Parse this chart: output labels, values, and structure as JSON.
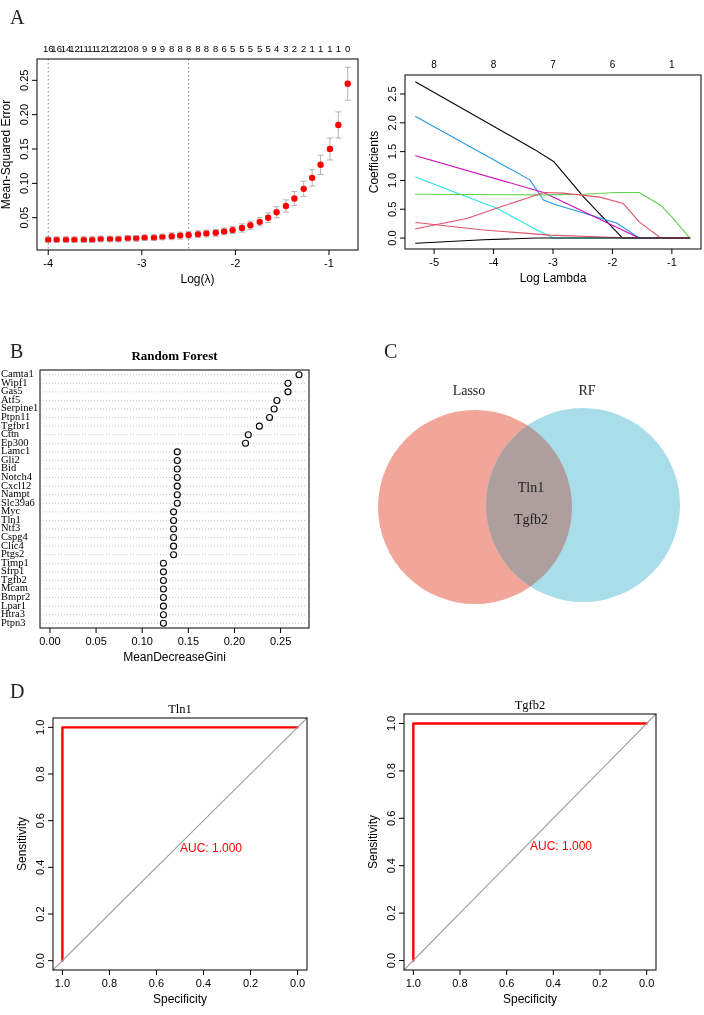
{
  "chart_data": [
    {
      "type": "scatter",
      "xlabel": "Log(λ)",
      "ylabel": "Mean-Squared Error",
      "annotations": [
        "A",
        "16",
        "16",
        "14",
        "12",
        "11",
        "11",
        "12",
        "12",
        "12",
        "10",
        "8",
        "9",
        "9",
        "9",
        "8",
        "8",
        "8",
        "8",
        "8",
        "8",
        "6",
        "5",
        "5",
        "5",
        "5",
        "5",
        "4",
        "3",
        "2",
        "2",
        "1",
        "1",
        "1",
        "1",
        "0"
      ],
      "color": "#ff0000",
      "marker": "circle",
      "x": [
        -4.0,
        -3.91,
        -3.81,
        -3.72,
        -3.62,
        -3.53,
        -3.44,
        -3.34,
        -3.25,
        -3.15,
        -3.06,
        -2.97,
        -2.87,
        -2.78,
        -2.68,
        -2.59,
        -2.5,
        -2.4,
        -2.31,
        -2.21,
        -2.12,
        -2.03,
        -1.93,
        -1.84,
        -1.74,
        -1.65,
        -1.56,
        -1.46,
        -1.37,
        -1.27,
        -1.18,
        -1.09,
        -0.99,
        -0.9,
        -0.8
      ],
      "values": [
        0.018,
        0.018,
        0.018,
        0.018,
        0.018,
        0.018,
        0.019,
        0.019,
        0.019,
        0.02,
        0.02,
        0.021,
        0.021,
        0.022,
        0.023,
        0.024,
        0.025,
        0.026,
        0.027,
        0.028,
        0.03,
        0.032,
        0.035,
        0.039,
        0.044,
        0.05,
        0.058,
        0.067,
        0.078,
        0.092,
        0.108,
        0.127,
        0.15,
        0.185,
        0.245
      ],
      "errors": [
        0.004,
        0.004,
        0.004,
        0.004,
        0.004,
        0.004,
        0.004,
        0.004,
        0.004,
        0.004,
        0.004,
        0.004,
        0.004,
        0.004,
        0.005,
        0.005,
        0.005,
        0.005,
        0.005,
        0.005,
        0.005,
        0.005,
        0.006,
        0.006,
        0.006,
        0.007,
        0.008,
        0.009,
        0.01,
        0.011,
        0.012,
        0.014,
        0.016,
        0.019,
        0.024
      ],
      "xlim": [
        -4.12,
        -0.69
      ],
      "xticks": [
        -4,
        -3,
        -2,
        -1
      ],
      "ylim": [
        0.003,
        0.281
      ],
      "yticks": [
        0.05,
        {
          "value": 0.1,
          "label": "0.10"
        },
        0.15,
        {
          "value": 0.2,
          "label": "0.20"
        },
        0.25
      ],
      "ref_lines": [
        {
          "axis": "x",
          "value": -4.0,
          "color": "#808080",
          "line_style": "dotted"
        },
        {
          "axis": "x",
          "value": -2.5,
          "color": "#808080",
          "line_style": "dotted"
        }
      ]
    },
    {
      "type": "line",
      "xlabel": "Log Lambda",
      "ylabel": "Coefficients",
      "series": [
        {
          "color": "#000000",
          "x": [
            -5.31,
            -3.3,
            -2.99,
            -2.49,
            -1.83,
            -0.7
          ],
          "values": [
            2.71,
            1.53,
            1.33,
            0.72,
            0,
            0
          ]
        },
        {
          "color": "#2297e6",
          "x": [
            -5.31,
            -3.39,
            -3.16,
            -2.99,
            -1.93,
            -1.55,
            -0.7
          ],
          "values": [
            2.11,
            1.01,
            0.66,
            0.59,
            0.26,
            0,
            0
          ]
        },
        {
          "color": "#cd0bbc",
          "x": [
            -5.31,
            -3.16,
            -1.55,
            -0.7
          ],
          "values": [
            1.43,
            0.79,
            0,
            0
          ]
        },
        {
          "color": "#28e2e5",
          "x": [
            -5.31,
            -4.62,
            -3.95,
            -3.27,
            -2.99,
            -0.7
          ],
          "values": [
            1.06,
            0.78,
            0.52,
            0.14,
            0,
            0
          ]
        },
        {
          "color": "#61d04f",
          "x": [
            -5.31,
            -3.16,
            -2.49,
            -1.93,
            -1.55,
            -1.19,
            -0.98,
            -0.7
          ],
          "values": [
            0.76,
            0.75,
            0.76,
            0.79,
            0.79,
            0.57,
            0.34,
            0
          ]
        },
        {
          "color": "#df536b",
          "x": [
            -5.31,
            -4.45,
            -3.89,
            -3.44,
            -3.16,
            -2.83,
            -2.21,
            -1.82,
            -1.55,
            -1.19,
            -0.7
          ],
          "values": [
            0.16,
            0.34,
            0.54,
            0.69,
            0.79,
            0.78,
            0.71,
            0.6,
            0.28,
            0,
            0
          ]
        },
        {
          "color": "#df536b",
          "x": [
            -5.31,
            -4.17,
            -3.05,
            -1.93,
            -1.55,
            -0.7
          ],
          "values": [
            0.27,
            0.14,
            0.05,
            0.01,
            0,
            0
          ]
        },
        {
          "color": "#000000",
          "x": [
            -5.31,
            -4.17,
            -3.27,
            -0.7
          ],
          "values": [
            -0.09,
            -0.03,
            0,
            0
          ]
        }
      ],
      "xlim": [
        -5.49,
        -0.51
      ],
      "xticks": [
        -5,
        -4,
        -3,
        -2,
        -1
      ],
      "ylim": [
        -0.19,
        2.83
      ],
      "yticks": [
        {
          "value": 0,
          "label": "0.0"
        },
        0.5,
        {
          "value": 1,
          "label": "1.0"
        },
        1.5,
        {
          "value": 2,
          "label": "2.0"
        },
        2.5
      ],
      "annotations": [
        "8",
        "8",
        "7",
        "6",
        "1"
      ]
    },
    {
      "type": "scatter",
      "orientation": "horizontal",
      "title": "Random Forest",
      "xlabel": "MeanDecreaseGini",
      "annotations": [
        "B"
      ],
      "color": "#000000",
      "marker": "circle",
      "grid": "y",
      "categories": [
        "Camta1",
        "Wipf1",
        "Gas5",
        "Atf5",
        "Serpine1",
        "Ptpn11",
        "Tgfbr1",
        "Cttn",
        "Ep300",
        "Lamc1",
        "Gli2",
        "Bid",
        "Notch4",
        "Cxcl12",
        "Nampt",
        "Slc39a6",
        "Myc",
        "Tln1",
        "Ntf3",
        "Cspg4",
        "Clic4",
        "Ptgs2",
        "Timp1",
        "Sfrp1",
        "Tgfb2",
        "Mcam",
        "Bmpr2",
        "Lpar1",
        "Htra3",
        "Ptpn3"
      ],
      "values": [
        0.27,
        0.258,
        0.258,
        0.246,
        0.243,
        0.238,
        0.227,
        0.215,
        0.212,
        0.138,
        0.138,
        0.138,
        0.138,
        0.138,
        0.138,
        0.138,
        0.134,
        0.134,
        0.134,
        0.134,
        0.134,
        0.134,
        0.123,
        0.123,
        0.123,
        0.123,
        0.123,
        0.123,
        0.123,
        0.123
      ],
      "xlim": [
        -0.0108,
        0.2808
      ],
      "xticks": [
        {
          "value": 0,
          "label": "0.00"
        },
        0.05,
        {
          "value": 0.1,
          "label": "0.10"
        },
        0.15,
        {
          "value": 0.2,
          "label": "0.20"
        },
        0.25
      ]
    },
    {
      "type": "other",
      "categories": [
        "Lasso",
        "RF"
      ],
      "colors": [
        "#f2a599",
        "#a8dde9"
      ],
      "annotations": [
        "C",
        "Tln1",
        "Tgfb2"
      ]
    },
    {
      "type": "line",
      "title": "Tln1",
      "xlabel": "Specificity",
      "ylabel": "Sensitivity",
      "annotations": [
        "D",
        {
          "text": "AUC: 1.000",
          "x": 0.5,
          "y": 0.48
        }
      ],
      "series": [
        {
          "color": "#ff0000",
          "x": [
            1,
            1,
            0
          ],
          "values": [
            0,
            1,
            1
          ]
        },
        {
          "color": "#a0a0a0",
          "x": [
            1.04,
            -0.04
          ],
          "values": [
            -0.04,
            1.04
          ]
        }
      ],
      "xlim": [
        1.04,
        -0.04
      ],
      "xticks": [
        {
          "value": 1,
          "label": "1.0"
        },
        0.8,
        0.6,
        0.4,
        0.2,
        {
          "value": 0,
          "label": "0.0"
        }
      ],
      "ylim": [
        -0.04,
        1.04
      ],
      "yticks": [
        {
          "value": 0,
          "label": "0.0"
        },
        0.2,
        0.4,
        0.6,
        0.8,
        {
          "value": 1,
          "label": "1.0"
        }
      ]
    },
    {
      "type": "line",
      "title": "Tgfb2",
      "xlabel": "Specificity",
      "ylabel": "Sensitivity",
      "annotations": [
        {
          "text": "AUC: 1.000",
          "x": 0.5,
          "y": 0.48
        }
      ],
      "series": [
        {
          "color": "#ff0000",
          "x": [
            1,
            1,
            0
          ],
          "values": [
            0,
            1,
            1
          ]
        },
        {
          "color": "#a0a0a0",
          "x": [
            1.04,
            -0.04
          ],
          "values": [
            -0.04,
            1.04
          ]
        }
      ],
      "xlim": [
        1.04,
        -0.04
      ],
      "xticks": [
        {
          "value": 1,
          "label": "1.0"
        },
        0.8,
        0.6,
        0.4,
        0.2,
        {
          "value": 0,
          "label": "0.0"
        }
      ],
      "ylim": [
        -0.04,
        1.04
      ],
      "yticks": [
        {
          "value": 0,
          "label": "0.0"
        },
        0.2,
        0.4,
        0.6,
        0.8,
        {
          "value": 1,
          "label": "1.0"
        }
      ]
    }
  ]
}
